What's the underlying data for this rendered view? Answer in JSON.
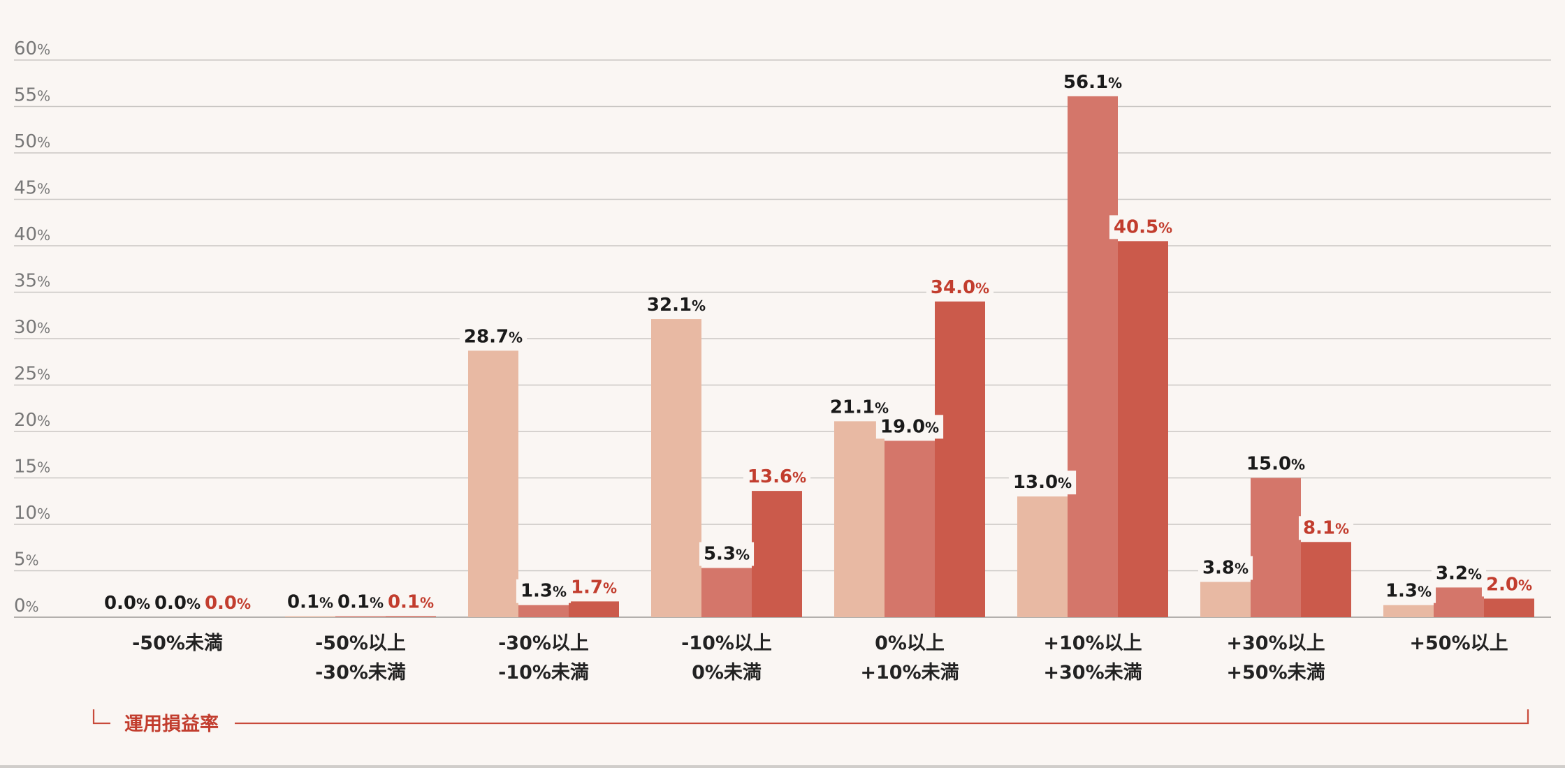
{
  "chart_data": {
    "type": "bar",
    "ylim": [
      0,
      60
    ],
    "yticks": [
      0,
      5,
      10,
      15,
      20,
      25,
      30,
      35,
      40,
      45,
      50,
      55,
      60
    ],
    "ytick_suffix": "%",
    "value_suffix": "%",
    "xlabel": "運用損益率",
    "categories": [
      [
        "-50%未満"
      ],
      [
        "-50%以上",
        "-30%未満"
      ],
      [
        "-30%以上",
        "-10%未満"
      ],
      [
        "-10%以上",
        "0%未満"
      ],
      [
        "0%以上",
        "+10%未満"
      ],
      [
        "+10%以上",
        "+30%未満"
      ],
      [
        "+30%以上",
        "+50%未満"
      ],
      [
        "+50%以上"
      ]
    ],
    "series": [
      {
        "values": [
          0.0,
          0.1,
          28.7,
          32.1,
          21.1,
          13.0,
          3.8,
          1.3
        ],
        "color": "#e8b9a3",
        "label_color": "#1a1a1a"
      },
      {
        "values": [
          0.0,
          0.1,
          1.3,
          5.3,
          19.0,
          56.1,
          15.0,
          3.2
        ],
        "color": "#d4766a",
        "label_color": "#1a1a1a"
      },
      {
        "values": [
          0.0,
          0.1,
          1.7,
          13.6,
          34.0,
          40.5,
          8.1,
          2.0
        ],
        "color": "#cb5a4b",
        "label_color": "#c23d2e"
      }
    ],
    "grid": true,
    "legend": "none"
  }
}
